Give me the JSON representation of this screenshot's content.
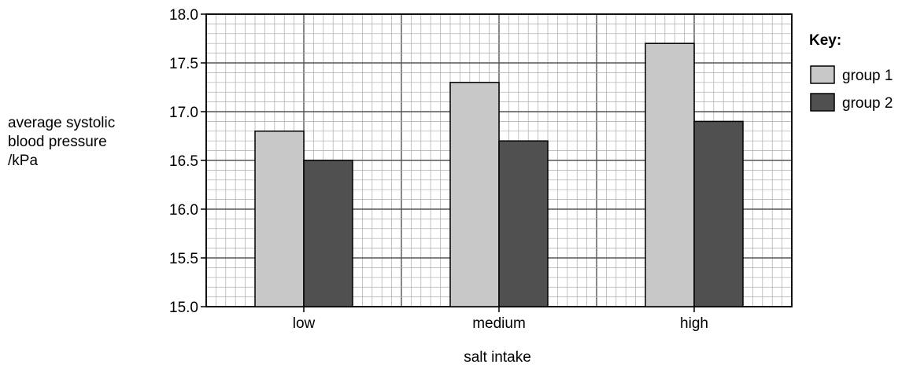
{
  "chart_data": {
    "type": "bar",
    "categories": [
      "low",
      "medium",
      "high"
    ],
    "series": [
      {
        "name": "group 1",
        "values": [
          16.8,
          17.3,
          17.7
        ],
        "color": "#c8c8c8"
      },
      {
        "name": "group 2",
        "values": [
          16.5,
          16.7,
          16.9
        ],
        "color": "#505050"
      }
    ],
    "ylabel_lines": [
      "average systolic",
      "blood pressure",
      "/kPa"
    ],
    "xlabel": "salt intake",
    "ylim": [
      15.0,
      18.0
    ],
    "yticks": [
      "15.0",
      "15.5",
      "16.0",
      "16.5",
      "17.0",
      "17.5",
      "18.0"
    ],
    "legend_title": "Key:",
    "legend_position": "right",
    "grid": true
  }
}
